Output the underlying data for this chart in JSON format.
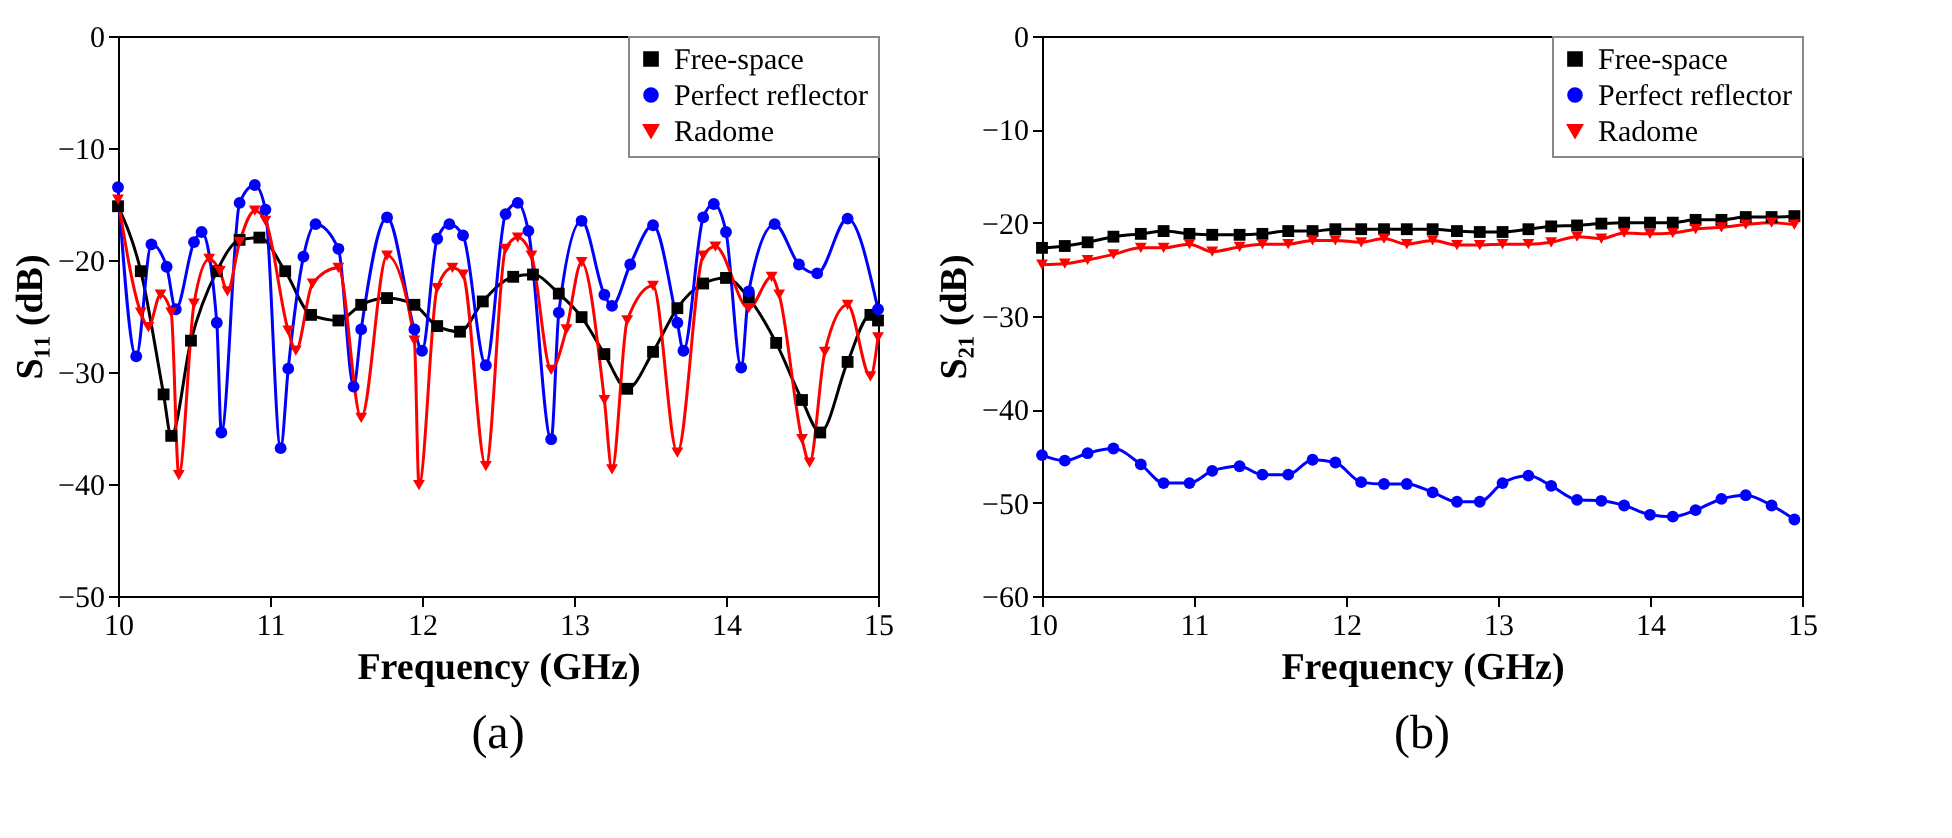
{
  "chart_data": [
    {
      "type": "line",
      "title": "(a)",
      "xlabel": "Frequency (GHz)",
      "ylabel": "S₁₁ (dB)",
      "xlim": [
        10,
        15
      ],
      "xticks": [
        10,
        11,
        12,
        13,
        14,
        15
      ],
      "ylim": [
        -50,
        0
      ],
      "yticks": [
        -50,
        -40,
        -30,
        -20,
        -10,
        0
      ],
      "grid": false,
      "legend": "top right",
      "series": [
        {
          "name": "Free-space",
          "color": "#000000",
          "marker": "square",
          "x": [
            10.0,
            10.15,
            10.3,
            10.35,
            10.48,
            10.65,
            10.8,
            10.93,
            11.1,
            11.27,
            11.45,
            11.6,
            11.77,
            11.95,
            12.1,
            12.25,
            12.4,
            12.6,
            12.73,
            12.9,
            13.05,
            13.2,
            13.35,
            13.52,
            13.68,
            13.85,
            14.0,
            14.15,
            14.33,
            14.5,
            14.62,
            14.8,
            14.95,
            15.0
          ],
          "values": [
            -15.2,
            -21,
            -32,
            -35.7,
            -27.2,
            -21,
            -18.2,
            -18,
            -21,
            -24.9,
            -25.4,
            -24,
            -23.4,
            -24,
            -25.9,
            -26.4,
            -23.7,
            -21.5,
            -21.3,
            -23,
            -25.1,
            -28.4,
            -31.5,
            -28.2,
            -24.3,
            -22.1,
            -21.6,
            -23.4,
            -27.4,
            -32.5,
            -35.4,
            -29.1,
            -24.9,
            -25.4
          ]
        },
        {
          "name": "Perfect reflector",
          "color": "#0000ff",
          "marker": "circle",
          "x": [
            10.0,
            10.12,
            10.22,
            10.32,
            10.38,
            10.5,
            10.55,
            10.65,
            10.68,
            10.8,
            10.9,
            10.97,
            11.07,
            11.12,
            11.22,
            11.3,
            11.45,
            11.55,
            11.6,
            11.77,
            11.95,
            12.0,
            12.1,
            12.18,
            12.27,
            12.42,
            12.55,
            12.63,
            12.7,
            12.85,
            12.9,
            13.05,
            13.2,
            13.25,
            13.37,
            13.52,
            13.68,
            13.72,
            13.85,
            13.92,
            14.0,
            14.1,
            14.15,
            14.32,
            14.48,
            14.6,
            14.8,
            15.0
          ],
          "values": [
            -13.5,
            -28.6,
            -18.6,
            -20.6,
            -24.4,
            -18.4,
            -17.5,
            -25.6,
            -35.4,
            -14.9,
            -13.3,
            -15.5,
            -36.8,
            -29.7,
            -19.7,
            -16.8,
            -19,
            -31.3,
            -26.2,
            -16.2,
            -26.2,
            -28.1,
            -18.1,
            -16.8,
            -17.8,
            -29.4,
            -15.9,
            -14.9,
            -17.4,
            -36,
            -24.7,
            -16.5,
            -23.1,
            -24.1,
            -20.4,
            -16.9,
            -25.6,
            -28.1,
            -16.2,
            -15,
            -17.5,
            -29.6,
            -22.8,
            -16.8,
            -20.4,
            -21.2,
            -16.3,
            -24.4
          ]
        },
        {
          "name": "Radome",
          "color": "#ff0000",
          "marker": "triangle",
          "x": [
            10.0,
            10.15,
            10.2,
            10.28,
            10.35,
            10.4,
            10.5,
            10.6,
            10.67,
            10.72,
            10.8,
            10.9,
            10.97,
            11.12,
            11.17,
            11.28,
            11.45,
            11.6,
            11.77,
            11.95,
            11.98,
            12.1,
            12.2,
            12.27,
            12.42,
            12.55,
            12.63,
            12.72,
            12.85,
            12.95,
            13.05,
            13.2,
            13.25,
            13.35,
            13.52,
            13.68,
            13.85,
            13.93,
            14.15,
            14.3,
            14.35,
            14.5,
            14.55,
            14.65,
            14.8,
            14.95,
            15.0
          ],
          "values": [
            -14.6,
            -24.7,
            -26,
            -23.1,
            -24.7,
            -39.2,
            -23.9,
            -19.9,
            -21,
            -22.8,
            -18.4,
            -15.6,
            -16.5,
            -26.3,
            -28.1,
            -22.1,
            -20.7,
            -34.1,
            -19.6,
            -27.2,
            -40.1,
            -22.5,
            -20.7,
            -21.3,
            -38.4,
            -19,
            -18,
            -19.6,
            -29.8,
            -26.2,
            -20.2,
            -32.5,
            -38.7,
            -25.4,
            -22.3,
            -37.2,
            -19.6,
            -18.8,
            -24.3,
            -21.5,
            -23.1,
            -36,
            -38.1,
            -28.2,
            -24,
            -30.4,
            -26.9
          ]
        }
      ]
    },
    {
      "type": "line",
      "title": "(b)",
      "xlabel": "Frequency (GHz)",
      "ylabel": "S₂₁ (dB)",
      "xlim": [
        10,
        15
      ],
      "xticks": [
        10,
        11,
        12,
        13,
        14,
        15
      ],
      "ylim": [
        -60,
        0
      ],
      "yticks": [
        -60,
        -50,
        -40,
        -30,
        -20,
        -10,
        0
      ],
      "grid": false,
      "legend": "top right",
      "x": [
        10.0,
        10.15,
        10.3,
        10.47,
        10.65,
        10.8,
        10.97,
        11.12,
        11.3,
        11.45,
        11.62,
        11.78,
        11.93,
        12.1,
        12.25,
        12.4,
        12.57,
        12.73,
        12.88,
        13.03,
        13.2,
        13.35,
        13.52,
        13.68,
        13.83,
        14.0,
        14.15,
        14.3,
        14.47,
        14.63,
        14.8,
        14.95
      ],
      "series": [
        {
          "name": "Free-space",
          "color": "#000000",
          "marker": "square",
          "values": [
            -22.7,
            -22.5,
            -22.1,
            -21.5,
            -21.2,
            -20.9,
            -21.2,
            -21.3,
            -21.3,
            -21.2,
            -20.9,
            -20.9,
            -20.7,
            -20.7,
            -20.7,
            -20.7,
            -20.7,
            -20.9,
            -21.0,
            -21.0,
            -20.7,
            -20.4,
            -20.3,
            -20.1,
            -20.0,
            -20.0,
            -20.0,
            -19.7,
            -19.7,
            -19.4,
            -19.4,
            -19.3
          ]
        },
        {
          "name": "Perfect reflector",
          "color": "#0000ff",
          "marker": "circle",
          "values": [
            -44.9,
            -45.5,
            -44.7,
            -44.2,
            -45.9,
            -47.9,
            -47.9,
            -46.6,
            -46.1,
            -47.0,
            -47.0,
            -45.4,
            -45.7,
            -47.8,
            -48.0,
            -48.0,
            -48.9,
            -49.9,
            -49.9,
            -47.9,
            -47.1,
            -48.2,
            -49.7,
            -49.8,
            -50.3,
            -51.3,
            -51.5,
            -50.8,
            -49.6,
            -49.2,
            -50.3,
            -51.8
          ]
        },
        {
          "name": "Radome",
          "color": "#ff0000",
          "marker": "triangle",
          "values": [
            -24.5,
            -24.4,
            -24.0,
            -23.4,
            -22.7,
            -22.7,
            -22.3,
            -23.1,
            -22.6,
            -22.3,
            -22.3,
            -21.9,
            -21.9,
            -22.1,
            -21.7,
            -22.3,
            -21.9,
            -22.4,
            -22.4,
            -22.3,
            -22.3,
            -22.1,
            -21.5,
            -21.7,
            -21.1,
            -21.2,
            -21.1,
            -20.7,
            -20.5,
            -20.2,
            -20.0,
            -20.2
          ]
        }
      ]
    }
  ]
}
